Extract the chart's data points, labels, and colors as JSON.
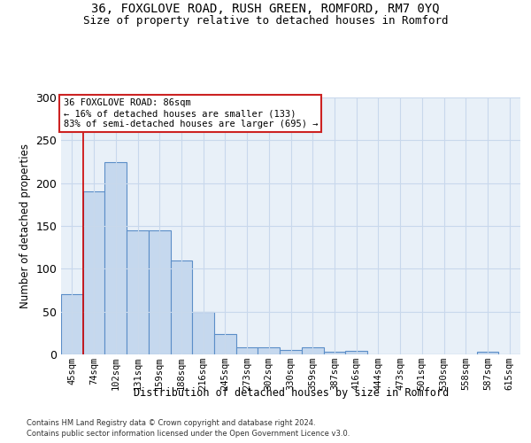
{
  "title_line1": "36, FOXGLOVE ROAD, RUSH GREEN, ROMFORD, RM7 0YQ",
  "title_line2": "Size of property relative to detached houses in Romford",
  "xlabel": "Distribution of detached houses by size in Romford",
  "ylabel": "Number of detached properties",
  "bar_color": "#c5d8ee",
  "bar_edge_color": "#5b8ec8",
  "bin_labels": [
    "45sqm",
    "74sqm",
    "102sqm",
    "131sqm",
    "159sqm",
    "188sqm",
    "216sqm",
    "245sqm",
    "273sqm",
    "302sqm",
    "330sqm",
    "359sqm",
    "387sqm",
    "416sqm",
    "444sqm",
    "473sqm",
    "501sqm",
    "530sqm",
    "558sqm",
    "587sqm",
    "615sqm"
  ],
  "bar_values": [
    70,
    190,
    224,
    145,
    145,
    110,
    50,
    24,
    8,
    8,
    5,
    8,
    3,
    4,
    0,
    0,
    0,
    0,
    0,
    3,
    0
  ],
  "ylim": [
    0,
    300
  ],
  "yticks": [
    0,
    50,
    100,
    150,
    200,
    250,
    300
  ],
  "property_label": "36 FOXGLOVE ROAD: 86sqm",
  "pct_smaller": "16%",
  "n_smaller": 133,
  "pct_larger_semi": "83%",
  "n_larger_semi": 695,
  "red_line_bin_idx": 1,
  "grid_color": "#c8d8ec",
  "background_color": "#e8f0f8",
  "footer_line1": "Contains HM Land Registry data © Crown copyright and database right 2024.",
  "footer_line2": "Contains public sector information licensed under the Open Government Licence v3.0."
}
